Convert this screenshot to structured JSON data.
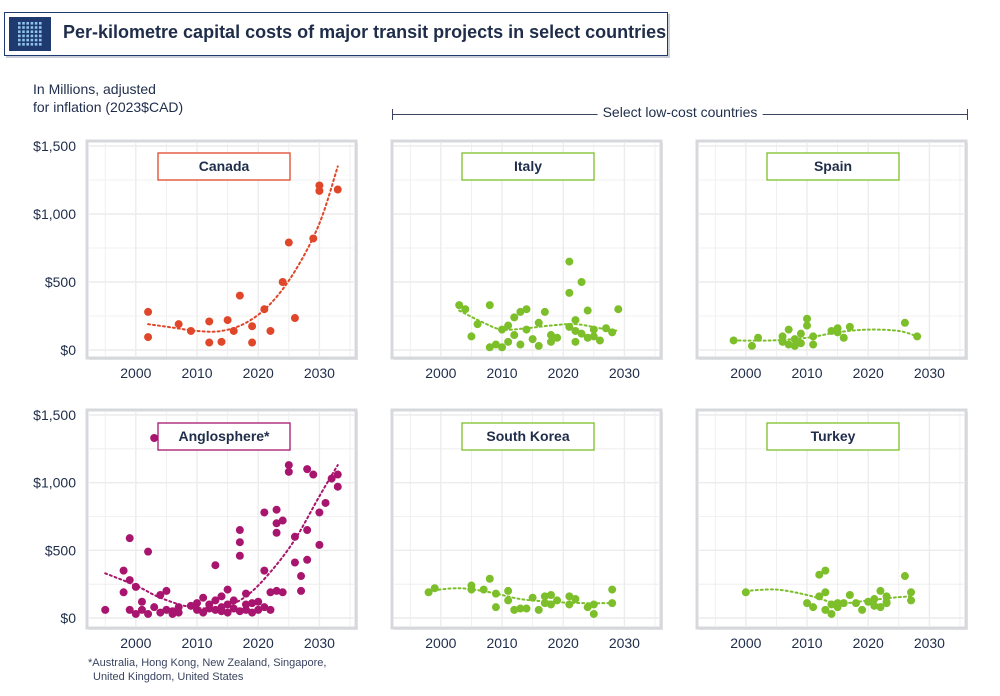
{
  "title": "Per-kilometre capital costs of major transit projects in select countries",
  "unit_label_line1": "In Millions, adjusted",
  "unit_label_line2": "for inflation (2023$CAD)",
  "group_label": "Select low-cost countries",
  "footnote_line1": "*Australia, Hong Kong, New Zealand, Singapore,",
  "footnote_line2": "United Kingdom, United States",
  "colors": {
    "canada": "#e0472a",
    "anglosphere": "#a8156e",
    "lowcost": "#7cbf2a",
    "panel_border": "#d6d8dc",
    "grid": "#ececec",
    "text": "#1f2d4a"
  },
  "chart_data": [
    {
      "panel": "Canada",
      "type": "scatter",
      "color": "canada",
      "x_ticks": [
        2000,
        2010,
        2020,
        2030
      ],
      "y_ticks": [
        "$1,500",
        "$1,000",
        "$500",
        "$0"
      ],
      "xlim": [
        1993,
        2035
      ],
      "ylim": [
        0,
        1500
      ],
      "points": [
        [
          2002,
          280
        ],
        [
          2002,
          95
        ],
        [
          2007,
          190
        ],
        [
          2009,
          140
        ],
        [
          2012,
          210
        ],
        [
          2012,
          55
        ],
        [
          2014,
          60
        ],
        [
          2015,
          220
        ],
        [
          2016,
          140
        ],
        [
          2017,
          400
        ],
        [
          2019,
          175
        ],
        [
          2019,
          55
        ],
        [
          2021,
          300
        ],
        [
          2022,
          140
        ],
        [
          2024,
          500
        ],
        [
          2025,
          790
        ],
        [
          2026,
          235
        ],
        [
          2029,
          820
        ],
        [
          2030,
          1210
        ],
        [
          2030,
          1170
        ],
        [
          2033,
          1180
        ]
      ],
      "trend": [
        [
          2002,
          190
        ],
        [
          2006,
          165
        ],
        [
          2010,
          140
        ],
        [
          2014,
          140
        ],
        [
          2018,
          200
        ],
        [
          2022,
          340
        ],
        [
          2026,
          580
        ],
        [
          2030,
          930
        ],
        [
          2033,
          1350
        ]
      ]
    },
    {
      "panel": "Italy",
      "type": "scatter",
      "color": "lowcost",
      "x_ticks": [
        2000,
        2010,
        2020,
        2030
      ],
      "y_ticks": [],
      "xlim": [
        1993,
        2035
      ],
      "ylim": [
        0,
        1500
      ],
      "points": [
        [
          2003,
          330
        ],
        [
          2004,
          300
        ],
        [
          2005,
          100
        ],
        [
          2006,
          190
        ],
        [
          2008,
          330
        ],
        [
          2008,
          20
        ],
        [
          2009,
          40
        ],
        [
          2010,
          20
        ],
        [
          2010,
          150
        ],
        [
          2011,
          60
        ],
        [
          2011,
          180
        ],
        [
          2012,
          110
        ],
        [
          2012,
          240
        ],
        [
          2013,
          40
        ],
        [
          2013,
          280
        ],
        [
          2014,
          150
        ],
        [
          2014,
          300
        ],
        [
          2015,
          80
        ],
        [
          2016,
          30
        ],
        [
          2016,
          200
        ],
        [
          2017,
          280
        ],
        [
          2018,
          60
        ],
        [
          2018,
          110
        ],
        [
          2019,
          90
        ],
        [
          2021,
          650
        ],
        [
          2021,
          420
        ],
        [
          2021,
          170
        ],
        [
          2022,
          140
        ],
        [
          2022,
          60
        ],
        [
          2022,
          220
        ],
        [
          2023,
          500
        ],
        [
          2023,
          120
        ],
        [
          2024,
          90
        ],
        [
          2024,
          290
        ],
        [
          2025,
          150
        ],
        [
          2025,
          100
        ],
        [
          2026,
          70
        ],
        [
          2027,
          160
        ],
        [
          2028,
          130
        ],
        [
          2029,
          300
        ]
      ],
      "trend": [
        [
          2003,
          290
        ],
        [
          2007,
          200
        ],
        [
          2010,
          150
        ],
        [
          2014,
          160
        ],
        [
          2018,
          180
        ],
        [
          2022,
          190
        ],
        [
          2026,
          160
        ],
        [
          2029,
          140
        ]
      ]
    },
    {
      "panel": "Spain",
      "type": "scatter",
      "color": "lowcost",
      "x_ticks": [
        2000,
        2010,
        2020,
        2030
      ],
      "y_ticks": [],
      "xlim": [
        1993,
        2035
      ],
      "ylim": [
        0,
        1500
      ],
      "points": [
        [
          1998,
          70
        ],
        [
          2001,
          30
        ],
        [
          2002,
          90
        ],
        [
          2006,
          60
        ],
        [
          2006,
          100
        ],
        [
          2007,
          40
        ],
        [
          2007,
          150
        ],
        [
          2008,
          80
        ],
        [
          2008,
          30
        ],
        [
          2009,
          120
        ],
        [
          2009,
          50
        ],
        [
          2010,
          230
        ],
        [
          2010,
          180
        ],
        [
          2011,
          100
        ],
        [
          2011,
          40
        ],
        [
          2014,
          140
        ],
        [
          2015,
          160
        ],
        [
          2015,
          130
        ],
        [
          2016,
          90
        ],
        [
          2017,
          170
        ],
        [
          2026,
          200
        ],
        [
          2028,
          100
        ]
      ],
      "trend": [
        [
          1998,
          70
        ],
        [
          2004,
          70
        ],
        [
          2010,
          90
        ],
        [
          2015,
          130
        ],
        [
          2020,
          150
        ],
        [
          2025,
          140
        ],
        [
          2028,
          100
        ]
      ]
    },
    {
      "panel": "Anglosphere*",
      "type": "scatter",
      "color": "anglosphere",
      "x_ticks": [
        2000,
        2010,
        2020,
        2030
      ],
      "y_ticks": [
        "$1,500",
        "$1,000",
        "$500",
        "$0"
      ],
      "xlim": [
        1993,
        2035
      ],
      "ylim": [
        0,
        1500
      ],
      "points": [
        [
          1995,
          60
        ],
        [
          1998,
          350
        ],
        [
          1998,
          190
        ],
        [
          1999,
          590
        ],
        [
          1999,
          280
        ],
        [
          1999,
          60
        ],
        [
          2000,
          230
        ],
        [
          2000,
          30
        ],
        [
          2001,
          120
        ],
        [
          2001,
          60
        ],
        [
          2002,
          490
        ],
        [
          2002,
          30
        ],
        [
          2003,
          1330
        ],
        [
          2003,
          80
        ],
        [
          2004,
          170
        ],
        [
          2004,
          40
        ],
        [
          2005,
          200
        ],
        [
          2005,
          60
        ],
        [
          2006,
          50
        ],
        [
          2006,
          30
        ],
        [
          2007,
          80
        ],
        [
          2007,
          40
        ],
        [
          2009,
          90
        ],
        [
          2010,
          60
        ],
        [
          2010,
          110
        ],
        [
          2011,
          40
        ],
        [
          2011,
          150
        ],
        [
          2012,
          70
        ],
        [
          2012,
          100
        ],
        [
          2013,
          390
        ],
        [
          2013,
          130
        ],
        [
          2013,
          60
        ],
        [
          2014,
          80
        ],
        [
          2014,
          160
        ],
        [
          2014,
          50
        ],
        [
          2015,
          210
        ],
        [
          2015,
          100
        ],
        [
          2015,
          40
        ],
        [
          2016,
          70
        ],
        [
          2016,
          130
        ],
        [
          2017,
          460
        ],
        [
          2017,
          650
        ],
        [
          2017,
          560
        ],
        [
          2017,
          50
        ],
        [
          2018,
          100
        ],
        [
          2018,
          180
        ],
        [
          2018,
          60
        ],
        [
          2019,
          110
        ],
        [
          2019,
          40
        ],
        [
          2020,
          60
        ],
        [
          2020,
          120
        ],
        [
          2021,
          780
        ],
        [
          2021,
          350
        ],
        [
          2021,
          80
        ],
        [
          2022,
          190
        ],
        [
          2022,
          60
        ],
        [
          2023,
          200
        ],
        [
          2023,
          700
        ],
        [
          2023,
          630
        ],
        [
          2023,
          800
        ],
        [
          2024,
          720
        ],
        [
          2024,
          190
        ],
        [
          2025,
          1130
        ],
        [
          2025,
          1080
        ],
        [
          2026,
          600
        ],
        [
          2026,
          410
        ],
        [
          2027,
          310
        ],
        [
          2027,
          200
        ],
        [
          2028,
          1100
        ],
        [
          2028,
          650
        ],
        [
          2028,
          430
        ],
        [
          2029,
          1060
        ],
        [
          2030,
          540
        ],
        [
          2030,
          780
        ],
        [
          2031,
          850
        ],
        [
          2032,
          1030
        ],
        [
          2033,
          970
        ],
        [
          2033,
          1060
        ]
      ],
      "trend": [
        [
          1995,
          330
        ],
        [
          2000,
          240
        ],
        [
          2004,
          150
        ],
        [
          2009,
          80
        ],
        [
          2014,
          80
        ],
        [
          2018,
          160
        ],
        [
          2022,
          340
        ],
        [
          2026,
          580
        ],
        [
          2030,
          900
        ],
        [
          2033,
          1130
        ]
      ]
    },
    {
      "panel": "South Korea",
      "type": "scatter",
      "color": "lowcost",
      "x_ticks": [
        2000,
        2010,
        2020,
        2030
      ],
      "y_ticks": [],
      "xlim": [
        1993,
        2035
      ],
      "ylim": [
        0,
        1500
      ],
      "points": [
        [
          1998,
          190
        ],
        [
          1999,
          220
        ],
        [
          2005,
          240
        ],
        [
          2005,
          210
        ],
        [
          2007,
          210
        ],
        [
          2008,
          290
        ],
        [
          2009,
          180
        ],
        [
          2009,
          80
        ],
        [
          2011,
          130
        ],
        [
          2011,
          200
        ],
        [
          2012,
          60
        ],
        [
          2013,
          70
        ],
        [
          2014,
          70
        ],
        [
          2015,
          150
        ],
        [
          2016,
          60
        ],
        [
          2017,
          160
        ],
        [
          2017,
          110
        ],
        [
          2018,
          170
        ],
        [
          2018,
          100
        ],
        [
          2019,
          130
        ],
        [
          2021,
          160
        ],
        [
          2021,
          100
        ],
        [
          2022,
          140
        ],
        [
          2024,
          80
        ],
        [
          2025,
          30
        ],
        [
          2025,
          100
        ],
        [
          2028,
          210
        ],
        [
          2028,
          110
        ]
      ],
      "trend": [
        [
          1998,
          200
        ],
        [
          2003,
          220
        ],
        [
          2008,
          190
        ],
        [
          2013,
          140
        ],
        [
          2018,
          120
        ],
        [
          2023,
          110
        ],
        [
          2028,
          110
        ]
      ]
    },
    {
      "panel": "Turkey",
      "type": "scatter",
      "color": "lowcost",
      "x_ticks": [
        2000,
        2010,
        2020,
        2030
      ],
      "y_ticks": [],
      "xlim": [
        1993,
        2035
      ],
      "ylim": [
        0,
        1500
      ],
      "points": [
        [
          2000,
          190
        ],
        [
          2010,
          110
        ],
        [
          2011,
          80
        ],
        [
          2012,
          160
        ],
        [
          2012,
          320
        ],
        [
          2013,
          190
        ],
        [
          2013,
          350
        ],
        [
          2013,
          60
        ],
        [
          2014,
          30
        ],
        [
          2014,
          100
        ],
        [
          2015,
          110
        ],
        [
          2015,
          80
        ],
        [
          2016,
          110
        ],
        [
          2017,
          170
        ],
        [
          2018,
          110
        ],
        [
          2019,
          60
        ],
        [
          2020,
          120
        ],
        [
          2021,
          140
        ],
        [
          2021,
          90
        ],
        [
          2022,
          80
        ],
        [
          2022,
          200
        ],
        [
          2023,
          110
        ],
        [
          2023,
          160
        ],
        [
          2023,
          120
        ],
        [
          2026,
          310
        ],
        [
          2027,
          190
        ],
        [
          2027,
          130
        ]
      ],
      "trend": [
        [
          2000,
          200
        ],
        [
          2005,
          210
        ],
        [
          2010,
          170
        ],
        [
          2015,
          110
        ],
        [
          2020,
          130
        ],
        [
          2024,
          150
        ],
        [
          2027,
          160
        ]
      ]
    }
  ]
}
